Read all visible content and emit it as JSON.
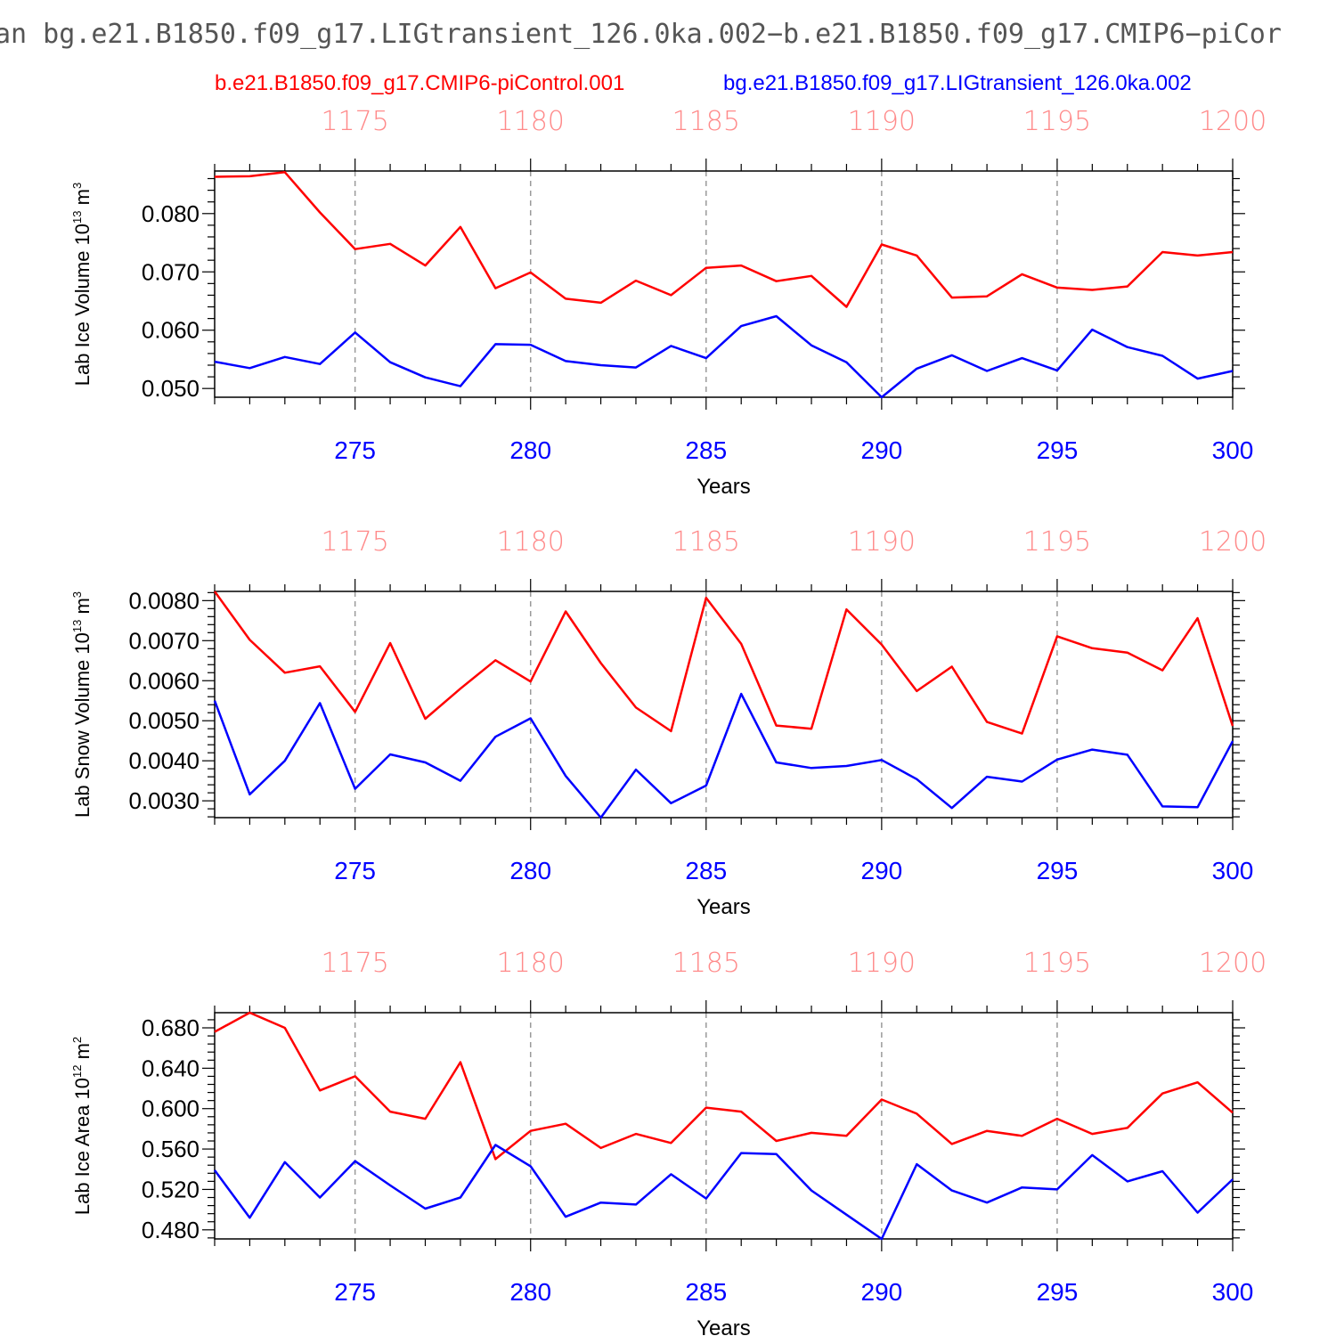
{
  "title": "an bg.e21.B1850.f09_g17.LIGtransient_126.0ka.002−b.e21.B1850.f09_g17.CMIP6−piCor",
  "legend": {
    "red": "b.e21.B1850.f09_g17.CMIP6-piControl.001",
    "blue": "bg.e21.B1850.f09_g17.LIGtransient_126.0ka.002"
  },
  "colors": {
    "red": "#ff0000",
    "blue": "#0000ff",
    "top_ticks": "#ff8a8a",
    "bottom_ticks": "#0000ff"
  },
  "chart_data": [
    {
      "type": "line",
      "xlabel": "Years",
      "ylabel": "Lab Ice Volume 10",
      "ylabel_exp": "13",
      "ylabel_unit": " m",
      "ylabel_unit_exp": "3",
      "x": [
        271,
        272,
        273,
        274,
        275,
        276,
        277,
        278,
        279,
        280,
        281,
        282,
        283,
        284,
        285,
        286,
        287,
        288,
        289,
        290,
        291,
        292,
        293,
        294,
        295,
        296,
        297,
        298,
        299,
        300
      ],
      "xlim": [
        271,
        300
      ],
      "ylim": [
        0.0485,
        0.0873
      ],
      "x_ticks": [
        275,
        280,
        285,
        290,
        295,
        300
      ],
      "x_top_ticks": [
        1175,
        1180,
        1185,
        1190,
        1195,
        1200
      ],
      "y_ticks": [
        "0.050",
        "0.060",
        "0.070",
        "0.080"
      ],
      "y_tick_values": [
        0.05,
        0.06,
        0.07,
        0.08
      ],
      "y_minor_step": 0.002,
      "grid": "vertical dashed at major x ticks",
      "series": [
        {
          "name": "b.e21.B1850.f09_g17.CMIP6-piControl.001",
          "color": "#ff0000",
          "values": [
            0.0863,
            0.0864,
            0.0871,
            0.0802,
            0.0739,
            0.0748,
            0.0711,
            0.0777,
            0.0672,
            0.0699,
            0.0654,
            0.0647,
            0.0685,
            0.066,
            0.0707,
            0.0711,
            0.0684,
            0.0693,
            0.064,
            0.0747,
            0.0728,
            0.0656,
            0.0658,
            0.0696,
            0.0673,
            0.0669,
            0.0675,
            0.0734,
            0.0728,
            0.0734
          ]
        },
        {
          "name": "bg.e21.B1850.f09_g17.LIGtransient_126.0ka.002",
          "color": "#0000ff",
          "values": [
            0.0546,
            0.0535,
            0.0554,
            0.0542,
            0.0596,
            0.0545,
            0.0519,
            0.0504,
            0.0576,
            0.0575,
            0.0547,
            0.054,
            0.0536,
            0.0573,
            0.0552,
            0.0607,
            0.0624,
            0.0574,
            0.0545,
            0.0485,
            0.0534,
            0.0557,
            0.053,
            0.0552,
            0.0531,
            0.0601,
            0.0571,
            0.0556,
            0.0517,
            0.053
          ]
        }
      ]
    },
    {
      "type": "line",
      "xlabel": "Years",
      "ylabel": "Lab Snow Volume 10",
      "ylabel_exp": "13",
      "ylabel_unit": " m",
      "ylabel_unit_exp": "3",
      "x": [
        271,
        272,
        273,
        274,
        275,
        276,
        277,
        278,
        279,
        280,
        281,
        282,
        283,
        284,
        285,
        286,
        287,
        288,
        289,
        290,
        291,
        292,
        293,
        294,
        295,
        296,
        297,
        298,
        299,
        300
      ],
      "xlim": [
        271,
        300
      ],
      "ylim": [
        0.00258,
        0.00823
      ],
      "x_ticks": [
        275,
        280,
        285,
        290,
        295,
        300
      ],
      "x_top_ticks": [
        1175,
        1180,
        1185,
        1190,
        1195,
        1200
      ],
      "y_ticks": [
        "0.0030",
        "0.0040",
        "0.0050",
        "0.0060",
        "0.0070",
        "0.0080"
      ],
      "y_tick_values": [
        0.003,
        0.004,
        0.005,
        0.006,
        0.007,
        0.008
      ],
      "y_minor_step": 0.0002,
      "grid": "vertical dashed at major x ticks",
      "series": [
        {
          "name": "b.e21.B1850.f09_g17.CMIP6-piControl.001",
          "color": "#ff0000",
          "values": [
            0.00823,
            0.00702,
            0.0062,
            0.00636,
            0.00522,
            0.00694,
            0.00505,
            0.0058,
            0.00651,
            0.00598,
            0.00773,
            0.00644,
            0.00533,
            0.00474,
            0.00807,
            0.00692,
            0.00488,
            0.0048,
            0.00778,
            0.0069,
            0.00574,
            0.00635,
            0.00497,
            0.00468,
            0.00711,
            0.00681,
            0.0067,
            0.00626,
            0.00756,
            0.00487
          ]
        },
        {
          "name": "bg.e21.B1850.f09_g17.LIGtransient_126.0ka.002",
          "color": "#0000ff",
          "values": [
            0.0055,
            0.00316,
            0.004,
            0.00544,
            0.0033,
            0.00416,
            0.00396,
            0.0035,
            0.0046,
            0.00506,
            0.00362,
            0.00258,
            0.00378,
            0.00294,
            0.00338,
            0.00567,
            0.00396,
            0.00382,
            0.00387,
            0.00402,
            0.00354,
            0.00282,
            0.0036,
            0.00348,
            0.00403,
            0.00428,
            0.00415,
            0.00286,
            0.00284,
            0.00449
          ]
        }
      ]
    },
    {
      "type": "line",
      "xlabel": "Years",
      "ylabel": "Lab Ice Area 10",
      "ylabel_exp": "12",
      "ylabel_unit": " m",
      "ylabel_unit_exp": "2",
      "x": [
        271,
        272,
        273,
        274,
        275,
        276,
        277,
        278,
        279,
        280,
        281,
        282,
        283,
        284,
        285,
        286,
        287,
        288,
        289,
        290,
        291,
        292,
        293,
        294,
        295,
        296,
        297,
        298,
        299,
        300
      ],
      "xlim": [
        271,
        300
      ],
      "ylim": [
        0.471,
        0.695
      ],
      "x_ticks": [
        275,
        280,
        285,
        290,
        295,
        300
      ],
      "x_top_ticks": [
        1175,
        1180,
        1185,
        1190,
        1195,
        1200
      ],
      "y_ticks": [
        "0.480",
        "0.520",
        "0.560",
        "0.600",
        "0.640",
        "0.680"
      ],
      "y_tick_values": [
        0.48,
        0.52,
        0.56,
        0.6,
        0.64,
        0.68
      ],
      "y_minor_step": 0.008,
      "grid": "vertical dashed at major x ticks",
      "series": [
        {
          "name": "b.e21.B1850.f09_g17.CMIP6-piControl.001",
          "color": "#ff0000",
          "values": [
            0.676,
            0.695,
            0.68,
            0.618,
            0.632,
            0.597,
            0.59,
            0.646,
            0.55,
            0.578,
            0.585,
            0.561,
            0.575,
            0.566,
            0.601,
            0.597,
            0.568,
            0.576,
            0.573,
            0.609,
            0.595,
            0.565,
            0.578,
            0.573,
            0.59,
            0.575,
            0.581,
            0.615,
            0.626,
            0.596
          ]
        },
        {
          "name": "bg.e21.B1850.f09_g17.LIGtransient_126.0ka.002",
          "color": "#0000ff",
          "values": [
            0.539,
            0.492,
            0.547,
            0.512,
            0.548,
            0.524,
            0.501,
            0.512,
            0.564,
            0.543,
            0.493,
            0.507,
            0.505,
            0.535,
            0.511,
            0.556,
            0.555,
            0.519,
            0.495,
            0.471,
            0.545,
            0.519,
            0.507,
            0.522,
            0.52,
            0.554,
            0.528,
            0.538,
            0.497,
            0.53
          ]
        }
      ]
    }
  ]
}
